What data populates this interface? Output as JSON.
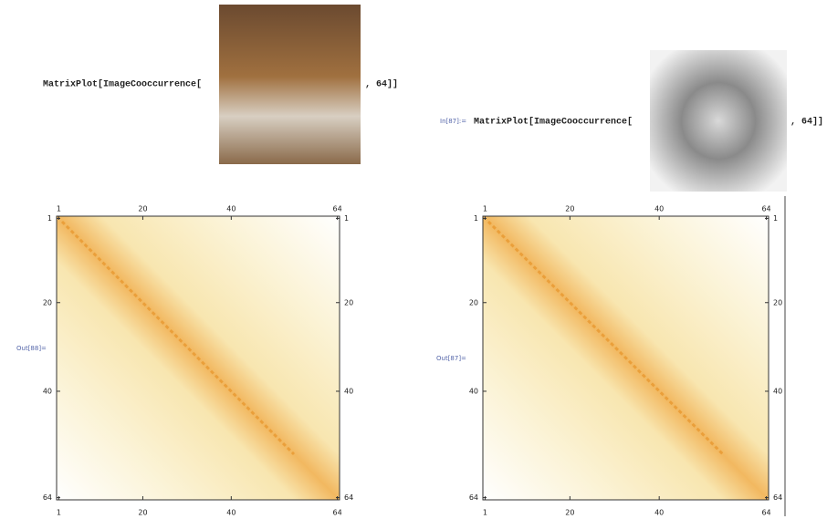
{
  "cells": [
    {
      "code_head": "MatrixPlot[ImageCooccurrence[",
      "code_tail": ", 64]]",
      "output_label": "Out[88]=",
      "ticks": [
        1,
        20,
        40,
        64
      ]
    },
    {
      "input_label": "In[87]:=",
      "code_head": "MatrixPlot[ImageCooccurrence[",
      "code_tail": ", 64]]",
      "output_label": "Out[87]=",
      "ticks": [
        1,
        20,
        40,
        64
      ]
    }
  ]
}
